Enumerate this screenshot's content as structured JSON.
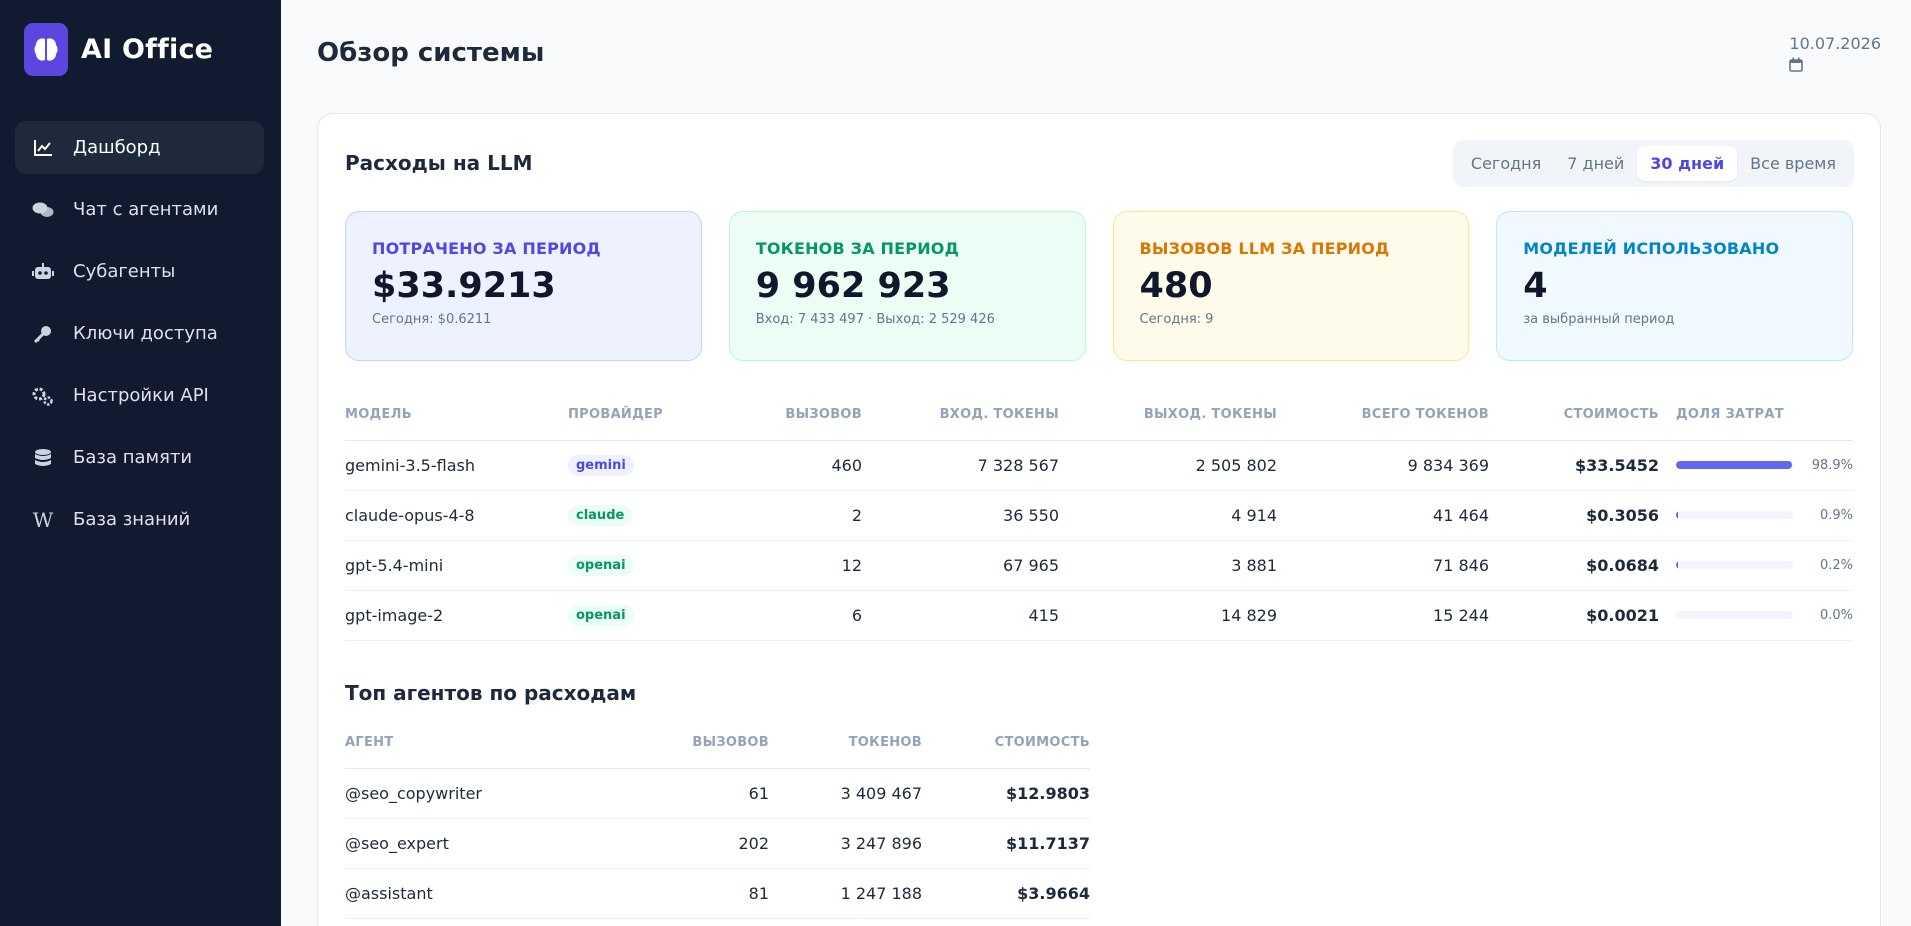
{
  "app": {
    "name": "AI Office"
  },
  "sidebar": {
    "items": [
      {
        "label": "Дашборд",
        "icon": "chart-line-icon",
        "active": true
      },
      {
        "label": "Чат с агентами",
        "icon": "chat-bubbles-icon",
        "active": false
      },
      {
        "label": "Субагенты",
        "icon": "robot-icon",
        "active": false
      },
      {
        "label": "Ключи доступа",
        "icon": "key-icon",
        "active": false
      },
      {
        "label": "Настройки API",
        "icon": "gears-icon",
        "active": false
      },
      {
        "label": "База памяти",
        "icon": "database-icon",
        "active": false
      },
      {
        "label": "База знаний",
        "icon": "wikipedia-icon",
        "active": false
      }
    ]
  },
  "header": {
    "title": "Обзор системы",
    "date": "10.07.2026"
  },
  "costs": {
    "title": "Расходы на LLM",
    "periods": [
      {
        "label": "Сегодня",
        "active": false
      },
      {
        "label": "7 дней",
        "active": false
      },
      {
        "label": "30 дней",
        "active": true
      },
      {
        "label": "Все время",
        "active": false
      }
    ],
    "stats": [
      {
        "label": "ПОТРАЧЕНО ЗА ПЕРИОД",
        "value": "$33.9213",
        "sub": "Сегодня: $0.6211",
        "color": "#4f46e5",
        "bg": "#eef2ff",
        "border": "#c7d2fe"
      },
      {
        "label": "ТОКЕНОВ ЗА ПЕРИОД",
        "value": "9 962 923",
        "sub": "Вход: 7 433 497 · Выход: 2 529 426",
        "color": "#059669",
        "bg": "#ecfdf5",
        "border": "#bbf7d0"
      },
      {
        "label": "ВЫЗОВОВ LLM ЗА ПЕРИОД",
        "value": "480",
        "sub": "Сегодня: 9",
        "color": "#d97706",
        "bg": "#fffbeb",
        "border": "#fde68a"
      },
      {
        "label": "МОДЕЛЕЙ ИСПОЛЬЗОВАНО",
        "value": "4",
        "sub": "за выбранный период",
        "color": "#0284c7",
        "bg": "#f0f9ff",
        "border": "#bae6fd"
      }
    ],
    "table": {
      "headers": {
        "model": "МОДЕЛЬ",
        "provider": "ПРОВАЙДЕР",
        "calls": "ВЫЗОВОВ",
        "input": "ВХОД. ТОКЕНЫ",
        "output": "ВЫХОД. ТОКЕНЫ",
        "total": "ВСЕГО ТОКЕНОВ",
        "cost": "СТОИМОСТЬ",
        "share": "ДОЛЯ ЗАТРАТ"
      },
      "rows": [
        {
          "model": "gemini-3.5-flash",
          "provider": "gemini",
          "calls": "460",
          "input": "7 328 567",
          "output": "2 505 802",
          "total": "9 834 369",
          "cost": "$33.5452",
          "share": "98.9%",
          "share_value": 98.9
        },
        {
          "model": "claude-opus-4-8",
          "provider": "claude",
          "calls": "2",
          "input": "36 550",
          "output": "4 914",
          "total": "41 464",
          "cost": "$0.3056",
          "share": "0.9%",
          "share_value": 0.9
        },
        {
          "model": "gpt-5.4-mini",
          "provider": "openai",
          "calls": "12",
          "input": "67 965",
          "output": "3 881",
          "total": "71 846",
          "cost": "$0.0684",
          "share": "0.2%",
          "share_value": 0.2
        },
        {
          "model": "gpt-image-2",
          "provider": "openai",
          "calls": "6",
          "input": "415",
          "output": "14 829",
          "total": "15 244",
          "cost": "$0.0021",
          "share": "0.0%",
          "share_value": 0.0
        }
      ]
    }
  },
  "provider_colors": {
    "gemini": {
      "fg": "#4f46e5",
      "bg": "#eef2ff"
    },
    "claude": {
      "fg": "#059669",
      "bg": "#ecfdf5"
    },
    "openai": {
      "fg": "#059669",
      "bg": "#ecfdf5"
    }
  },
  "agents": {
    "title": "Топ агентов по расходам",
    "headers": {
      "agent": "АГЕНТ",
      "calls": "ВЫЗОВОВ",
      "tokens": "ТОКЕНОВ",
      "cost": "СТОИМОСТЬ"
    },
    "rows": [
      {
        "agent": "@seo_copywriter",
        "calls": "61",
        "tokens": "3 409 467",
        "cost": "$12.9803"
      },
      {
        "agent": "@seo_expert",
        "calls": "202",
        "tokens": "3 247 896",
        "cost": "$11.7137"
      },
      {
        "agent": "@assistant",
        "calls": "81",
        "tokens": "1 247 188",
        "cost": "$3.9664"
      }
    ]
  }
}
